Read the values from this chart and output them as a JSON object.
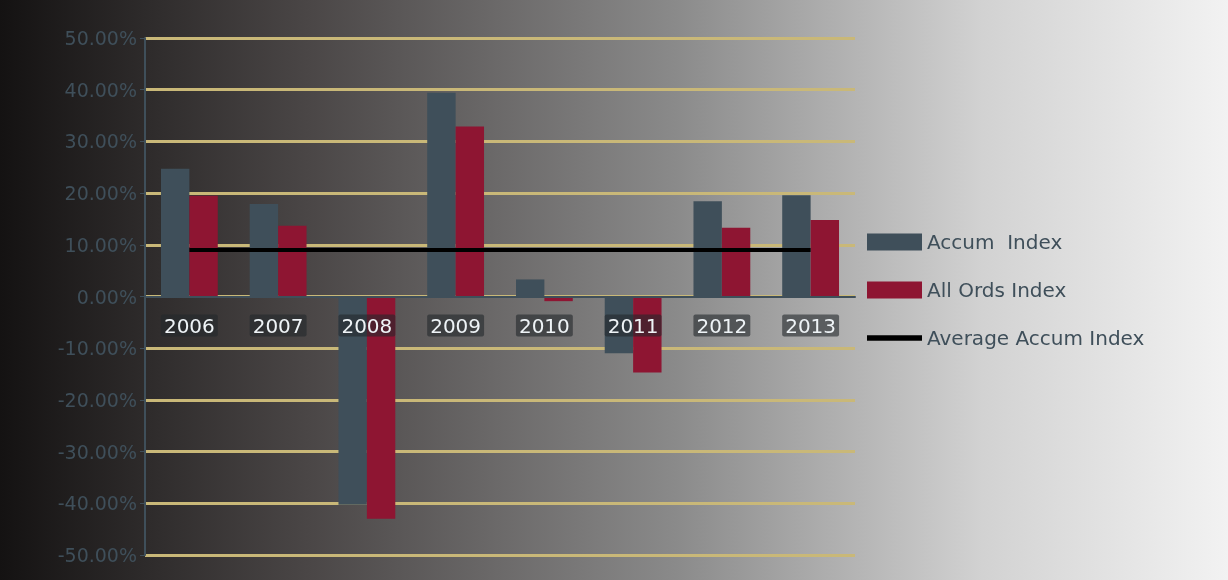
{
  "chart_data": {
    "type": "bar",
    "categories": [
      "2006",
      "2007",
      "2008",
      "2009",
      "2010",
      "2011",
      "2012",
      "2013"
    ],
    "series": [
      {
        "name": "Accum  Index",
        "color": "#3f4f5a",
        "values": [
          24.7,
          17.9,
          -40.3,
          39.4,
          3.3,
          -11.0,
          18.4,
          19.6
        ]
      },
      {
        "name": "All Ords Index",
        "color": "#8e1532",
        "values": [
          19.5,
          13.7,
          -43.0,
          32.9,
          -0.9,
          -14.7,
          13.3,
          14.8
        ]
      },
      {
        "name": "Average Accum Index",
        "type": "line",
        "color": "#000000",
        "marker": "none",
        "values": [
          9.0,
          9.0,
          9.0,
          9.0,
          9.0,
          9.0,
          9.0,
          9.0
        ]
      }
    ],
    "ylim": [
      -50,
      50
    ],
    "yticks": [
      {
        "value": -50,
        "label": "-50.00%"
      },
      {
        "value": -40,
        "label": "-40.00%"
      },
      {
        "value": -30,
        "label": "-30.00%"
      },
      {
        "value": -20,
        "label": "-20.00%"
      },
      {
        "value": -10,
        "label": "-10.00%"
      },
      {
        "value": 0,
        "label": "0.00%"
      },
      {
        "value": 10,
        "label": "10.00%"
      },
      {
        "value": 20,
        "label": "20.00%"
      },
      {
        "value": 30,
        "label": "30.00%"
      },
      {
        "value": 40,
        "label": "40.00%"
      },
      {
        "value": 50,
        "label": "50.00%"
      }
    ],
    "grid": "y",
    "legend": "right"
  }
}
